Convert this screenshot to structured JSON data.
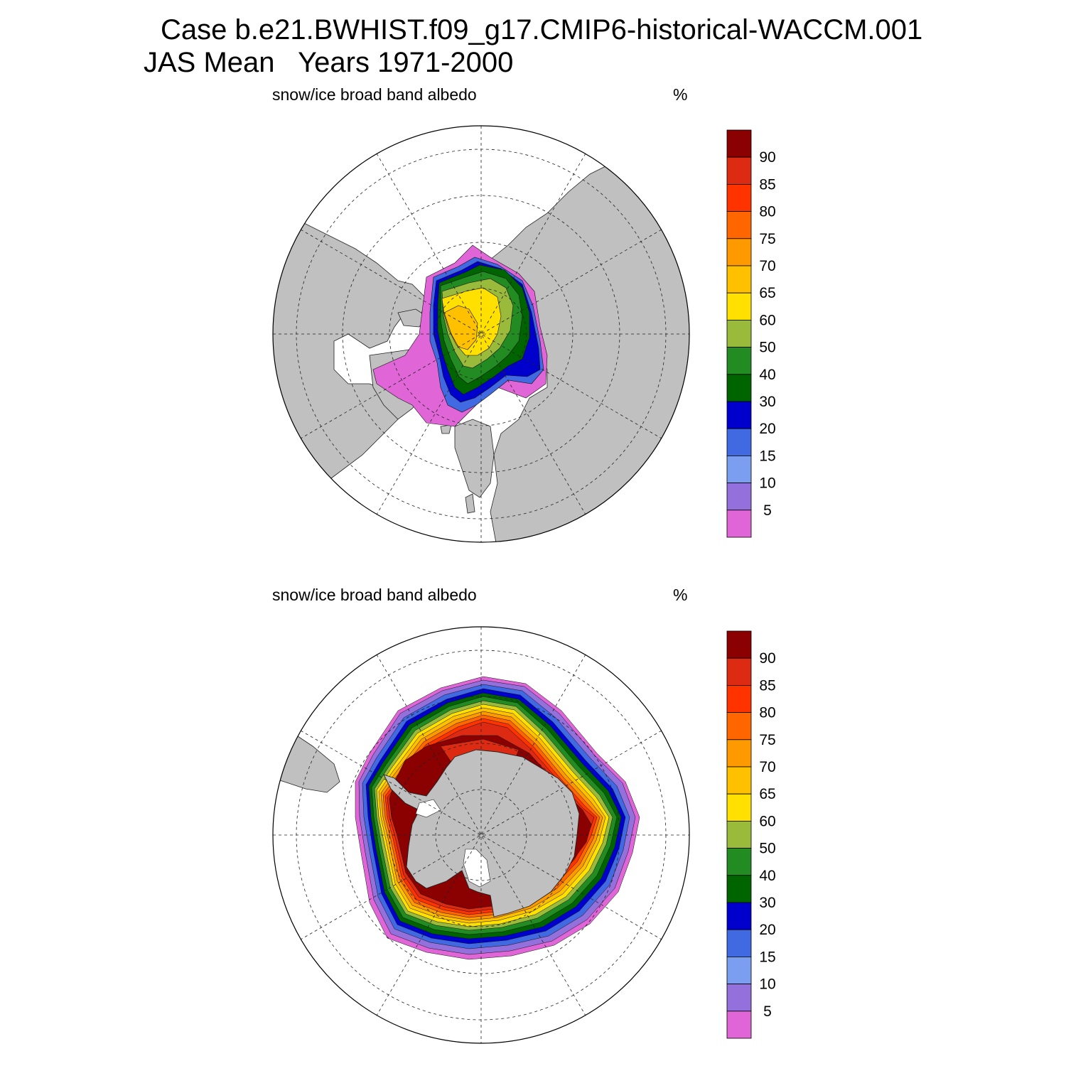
{
  "header": {
    "case_title": "Case b.e21.BWHIST.f09_g17.CMIP6-historical-WACCM.001",
    "period_title": "JAS Mean   Years 1971-2000"
  },
  "panels": [
    {
      "id": "north",
      "variable": "snow/ice broad band albedo",
      "units": "%"
    },
    {
      "id": "south",
      "variable": "snow/ice broad band albedo",
      "units": "%"
    }
  ],
  "colorbar": {
    "levels": [
      "5",
      "10",
      "15",
      "20",
      "30",
      "40",
      "50",
      "60",
      "65",
      "70",
      "75",
      "80",
      "85",
      "90"
    ],
    "colors": [
      "#e066d8",
      "#9370db",
      "#7b9ef0",
      "#4169e1",
      "#0000cd",
      "#006400",
      "#228b22",
      "#9aba3c",
      "#ffe000",
      "#ffc000",
      "#ff9900",
      "#ff6600",
      "#ff3300",
      "#dd2a12",
      "#8b0000"
    ]
  },
  "map_style": {
    "land_color": "#c0c0c0",
    "ocean_color": "#ffffff",
    "graticule": "dashed"
  }
}
